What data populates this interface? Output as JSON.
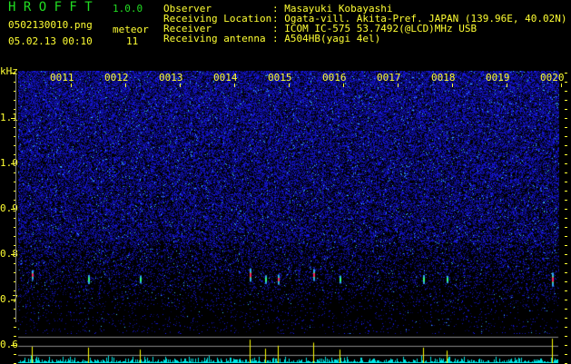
{
  "app": {
    "title": "H R O F F T",
    "version": "1.0.0"
  },
  "file": {
    "name": "0502130010.png",
    "datetime": "05.02.13 00:10"
  },
  "meteor": {
    "label": "meteor",
    "count": "11"
  },
  "info": [
    {
      "label": "Observer",
      "value": ": Masayuki Kobayashi"
    },
    {
      "label": "Receiving Location",
      "value": ": Ogata-vill. Akita-Pref. JAPAN (139.96E, 40.02N)"
    },
    {
      "label": "Receiver",
      "value": ": ICOM IC-575 53.7492(@LCD)MHz USB"
    },
    {
      "label": "Receiving antenna",
      "value": ": A504HB(yagi 4el)"
    }
  ],
  "axis": {
    "unit": "kHz",
    "y_ticks": [
      "1.1",
      "1.0",
      "0.9",
      "0.8",
      "0.7",
      "0.6"
    ],
    "time_ticks": [
      "0011",
      "0012",
      "0013",
      "0014",
      "0015",
      "0016",
      "0017",
      "0018",
      "0019",
      "0020"
    ]
  },
  "meteors": [
    {
      "time": "00:10:17",
      "freq": 0.71,
      "strength": 0.55
    },
    {
      "time": "00:10:79",
      "freq": 0.7,
      "strength": 0.5
    },
    {
      "time": "00:10:136",
      "freq": 0.7,
      "strength": 0.4
    },
    {
      "time": "00:10:257",
      "freq": 0.71,
      "strength": 0.9
    },
    {
      "time": "00:10:274",
      "freq": 0.7,
      "strength": 0.45
    },
    {
      "time": "00:10:288",
      "freq": 0.7,
      "strength": 0.6
    },
    {
      "time": "00:10:327",
      "freq": 0.71,
      "strength": 0.75
    },
    {
      "time": "00:10:356",
      "freq": 0.7,
      "strength": 0.4
    },
    {
      "time": "00:10:448",
      "freq": 0.7,
      "strength": 0.5
    },
    {
      "time": "00:10:474",
      "freq": 0.7,
      "strength": 0.35
    },
    {
      "time": "00:10:590",
      "freq": 0.7,
      "strength": 0.95
    }
  ],
  "colors": {
    "text": "#ffff33",
    "title": "#22dd22",
    "noise": "#1a1acc",
    "signal": "#ff2060",
    "histogram": "#00ffff",
    "grid": "#888888"
  }
}
